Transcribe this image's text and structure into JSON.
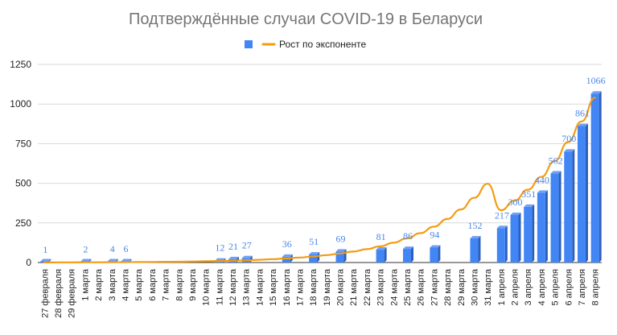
{
  "chart_data": {
    "type": "bar",
    "title": "Подтверждённые случаи COVID-19 в Беларуси",
    "legend": {
      "position": "top",
      "bar_label": "",
      "line_label": "Рост по экспоненте"
    },
    "colors": {
      "bar": "#4285f4",
      "bar_side": "#2c5fbd",
      "bar_top": "#6fa0f6",
      "trend": "#f39c12",
      "grid": "#d9d9d9",
      "axis": "#333333",
      "label": "#4a86e8",
      "title": "#757575"
    },
    "grid": true,
    "ylim": [
      0,
      1250
    ],
    "yticks": [
      "0",
      "250",
      "500",
      "750",
      "1000",
      "1250"
    ],
    "categories": [
      "27 февраля",
      "28 февраля",
      "29 февраля",
      "1 марта",
      "2 марта",
      "3 марта",
      "4 марта",
      "5 марта",
      "6 марта",
      "7 марта",
      "8 марта",
      "9 марта",
      "10 марта",
      "11 марта",
      "12 марта",
      "13 марта",
      "14 марта",
      "15 марта",
      "16 марта",
      "17 марта",
      "18 марта",
      "19 марта",
      "20 марта",
      "21 марта",
      "22 марта",
      "23 марта",
      "24 марта",
      "25 марта",
      "26 марта",
      "27 марта",
      "28 марта",
      "29 марта",
      "30 марта",
      "31 марта",
      "1 апреля",
      "2 апреля",
      "3 апреля",
      "4 апреля",
      "5 апреля",
      "6 апреля",
      "7 апреля",
      "8 апреля"
    ],
    "values": [
      1,
      null,
      null,
      2,
      null,
      4,
      6,
      null,
      null,
      null,
      null,
      null,
      null,
      12,
      21,
      27,
      null,
      null,
      36,
      null,
      51,
      null,
      69,
      null,
      null,
      81,
      null,
      86,
      null,
      94,
      null,
      null,
      152,
      null,
      217,
      300,
      351,
      440,
      562,
      700,
      861,
      1066
    ],
    "data_labels": [
      "1",
      "",
      "",
      "2",
      "",
      "4",
      "6",
      "",
      "",
      "",
      "",
      "",
      "",
      "12",
      "21",
      "27",
      "",
      "",
      "36",
      "",
      "51",
      "",
      "69",
      "",
      "",
      "81",
      "",
      "86",
      "",
      "94",
      "",
      "",
      "152",
      "",
      "217",
      "300",
      "351",
      "440",
      "562",
      "700",
      "861",
      "1066"
    ],
    "trend": {
      "name": "Рост по экспоненте",
      "values": [
        0.7,
        0.9,
        1.1,
        1.3,
        1.6,
        2.0,
        2.4,
        2.9,
        3.6,
        4.4,
        5.3,
        6.5,
        7.9,
        9.6,
        11.7,
        14.3,
        17.4,
        21.2,
        25.8,
        31.4,
        38.3,
        46.6,
        56.8,
        69.2,
        84.3,
        102.7,
        125.1,
        152.4,
        185.6,
        226,
        275,
        335,
        408,
        497,
        330,
        390,
        460,
        540,
        640,
        760,
        890,
        1040
      ]
    }
  }
}
